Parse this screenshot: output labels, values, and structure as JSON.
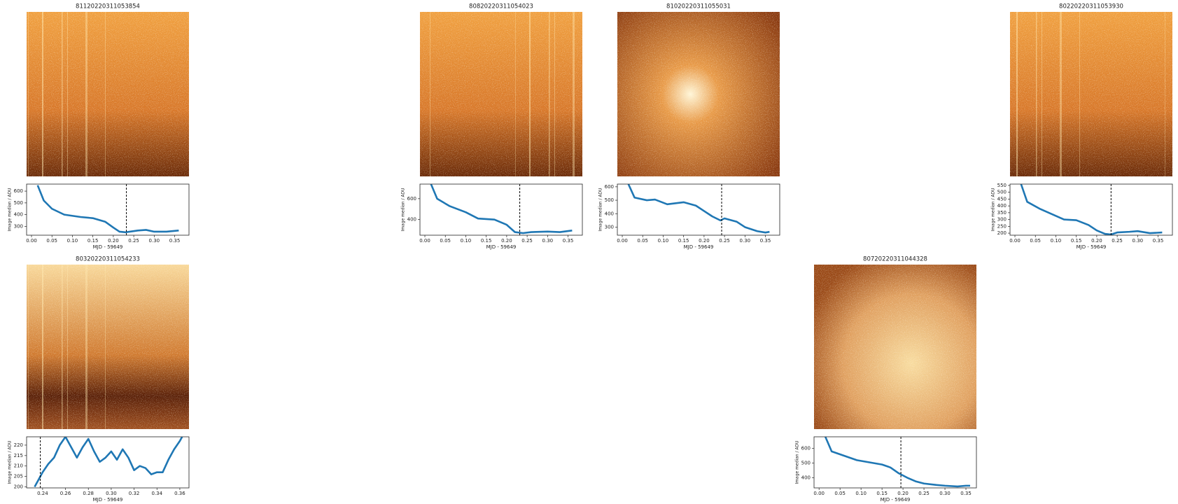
{
  "chart_data": [
    {
      "type": "line",
      "title": "81120220311053854",
      "xlabel": "MJD - 59649",
      "ylabel": "Image median / ADU",
      "color": "#1f77b4",
      "x": [
        0.015,
        0.03,
        0.05,
        0.08,
        0.12,
        0.15,
        0.18,
        0.2,
        0.215,
        0.23,
        0.26,
        0.28,
        0.3,
        0.33,
        0.36
      ],
      "values": [
        650,
        520,
        450,
        400,
        380,
        370,
        340,
        290,
        255,
        250,
        265,
        270,
        255,
        255,
        265
      ],
      "vline": 0.232,
      "xlim": [
        -0.012,
        0.385
      ],
      "ylim": [
        225,
        660
      ],
      "xticks": [
        {
          "value": 0,
          "label": "0.00"
        },
        {
          "value": 0.05,
          "label": "0.05"
        },
        {
          "value": 0.1,
          "label": "0.10"
        },
        {
          "value": 0.15,
          "label": "0.15"
        },
        {
          "value": 0.2,
          "label": "0.20"
        },
        {
          "value": 0.25,
          "label": "0.25"
        },
        {
          "value": 0.3,
          "label": "0.30"
        },
        {
          "value": 0.35,
          "label": "0.35"
        }
      ],
      "yticks": [
        300,
        400,
        500,
        600
      ]
    },
    {
      "type": "line",
      "title": "80820220311054023",
      "xlabel": "MJD - 59649",
      "ylabel": "Image median / ADU",
      "color": "#1f77b4",
      "x": [
        0.015,
        0.03,
        0.06,
        0.1,
        0.13,
        0.17,
        0.2,
        0.22,
        0.24,
        0.26,
        0.3,
        0.33,
        0.36
      ],
      "values": [
        740,
        600,
        530,
        470,
        410,
        400,
        350,
        280,
        270,
        280,
        285,
        280,
        295
      ],
      "vline": 0.232,
      "xlim": [
        -0.012,
        0.385
      ],
      "ylim": [
        250,
        740
      ],
      "xticks": [
        {
          "value": 0,
          "label": "0.00"
        },
        {
          "value": 0.05,
          "label": "0.05"
        },
        {
          "value": 0.1,
          "label": "0.10"
        },
        {
          "value": 0.15,
          "label": "0.15"
        },
        {
          "value": 0.2,
          "label": "0.20"
        },
        {
          "value": 0.25,
          "label": "0.25"
        },
        {
          "value": 0.3,
          "label": "0.30"
        },
        {
          "value": 0.35,
          "label": "0.35"
        }
      ],
      "yticks": [
        400,
        600
      ]
    },
    {
      "type": "line",
      "title": "81020220311055031",
      "xlabel": "MJD - 59649",
      "ylabel": "Image median / ADU",
      "color": "#1f77b4",
      "x": [
        0.015,
        0.03,
        0.06,
        0.08,
        0.11,
        0.15,
        0.18,
        0.2,
        0.22,
        0.24,
        0.25,
        0.28,
        0.3,
        0.33,
        0.35,
        0.36
      ],
      "values": [
        620,
        520,
        500,
        505,
        470,
        485,
        460,
        420,
        380,
        350,
        365,
        340,
        300,
        270,
        260,
        265
      ],
      "vline": 0.243,
      "xlim": [
        -0.012,
        0.385
      ],
      "ylim": [
        240,
        620
      ],
      "xticks": [
        {
          "value": 0,
          "label": "0.00"
        },
        {
          "value": 0.05,
          "label": "0.05"
        },
        {
          "value": 0.1,
          "label": "0.10"
        },
        {
          "value": 0.15,
          "label": "0.15"
        },
        {
          "value": 0.2,
          "label": "0.20"
        },
        {
          "value": 0.25,
          "label": "0.25"
        },
        {
          "value": 0.3,
          "label": "0.30"
        },
        {
          "value": 0.35,
          "label": "0.35"
        }
      ],
      "yticks": [
        300,
        400,
        500,
        600
      ]
    },
    {
      "type": "line",
      "title": "80220220311053930",
      "xlabel": "MJD - 59649",
      "ylabel": "Image median / ADU",
      "color": "#1f77b4",
      "x": [
        0.015,
        0.03,
        0.06,
        0.09,
        0.12,
        0.15,
        0.18,
        0.2,
        0.22,
        0.235,
        0.25,
        0.28,
        0.3,
        0.33,
        0.36
      ],
      "values": [
        560,
        430,
        380,
        340,
        300,
        295,
        260,
        220,
        195,
        190,
        205,
        210,
        215,
        200,
        205
      ],
      "vline": 0.235,
      "xlim": [
        -0.012,
        0.385
      ],
      "ylim": [
        185,
        560
      ],
      "xticks": [
        {
          "value": 0,
          "label": "0.00"
        },
        {
          "value": 0.05,
          "label": "0.05"
        },
        {
          "value": 0.1,
          "label": "0.10"
        },
        {
          "value": 0.15,
          "label": "0.15"
        },
        {
          "value": 0.2,
          "label": "0.20"
        },
        {
          "value": 0.25,
          "label": "0.25"
        },
        {
          "value": 0.3,
          "label": "0.30"
        },
        {
          "value": 0.35,
          "label": "0.35"
        }
      ],
      "yticks": [
        200,
        250,
        300,
        350,
        400,
        450,
        500,
        550
      ]
    },
    {
      "type": "line",
      "title": "80320220311054233",
      "xlabel": "MJD - 59649",
      "ylabel": "Image median / ADU",
      "color": "#1f77b4",
      "x": [
        0.233,
        0.236,
        0.24,
        0.245,
        0.25,
        0.255,
        0.26,
        0.265,
        0.27,
        0.275,
        0.28,
        0.285,
        0.29,
        0.295,
        0.3,
        0.305,
        0.31,
        0.315,
        0.32,
        0.325,
        0.33,
        0.335,
        0.34,
        0.345,
        0.35,
        0.355,
        0.36,
        0.362
      ],
      "values": [
        200,
        203,
        207,
        211,
        214,
        220,
        224,
        219,
        214,
        219,
        223,
        217,
        212,
        214,
        217,
        213,
        218,
        214,
        208,
        210,
        209,
        206,
        207,
        207,
        213,
        218,
        222,
        224
      ],
      "vline": 0.238,
      "xlim": [
        0.226,
        0.368
      ],
      "ylim": [
        199.5,
        224
      ],
      "xticks": [
        {
          "value": 0.24,
          "label": "0.24"
        },
        {
          "value": 0.26,
          "label": "0.26"
        },
        {
          "value": 0.28,
          "label": "0.28"
        },
        {
          "value": 0.3,
          "label": "0.30"
        },
        {
          "value": 0.32,
          "label": "0.32"
        },
        {
          "value": 0.34,
          "label": "0.34"
        },
        {
          "value": 0.36,
          "label": "0.36"
        }
      ],
      "yticks": [
        200,
        205,
        210,
        215,
        220
      ]
    },
    {
      "type": "line",
      "title": "80720220311044328",
      "xlabel": "MJD - 59649",
      "ylabel": "Image median / ADU",
      "color": "#1f77b4",
      "x": [
        0.015,
        0.03,
        0.06,
        0.09,
        0.12,
        0.15,
        0.17,
        0.19,
        0.21,
        0.23,
        0.25,
        0.28,
        0.3,
        0.33,
        0.35,
        0.36
      ],
      "values": [
        680,
        580,
        550,
        520,
        505,
        490,
        470,
        430,
        400,
        375,
        360,
        350,
        345,
        340,
        345,
        345
      ],
      "vline": 0.195,
      "xlim": [
        -0.012,
        0.375
      ],
      "ylim": [
        330,
        680
      ],
      "xticks": [
        {
          "value": 0,
          "label": "0.00"
        },
        {
          "value": 0.05,
          "label": "0.05"
        },
        {
          "value": 0.1,
          "label": "0.10"
        },
        {
          "value": 0.15,
          "label": "0.15"
        },
        {
          "value": 0.2,
          "label": "0.20"
        },
        {
          "value": 0.25,
          "label": "0.25"
        },
        {
          "value": 0.3,
          "label": "0.30"
        },
        {
          "value": 0.35,
          "label": "0.35"
        }
      ],
      "yticks": [
        400,
        500,
        600
      ]
    }
  ]
}
